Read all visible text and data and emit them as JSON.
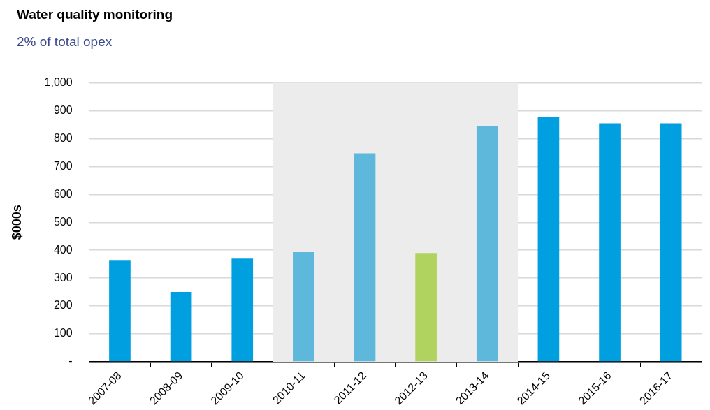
{
  "chart_data": {
    "type": "bar",
    "title": "Water quality monitoring",
    "subtitle": "2% of total opex",
    "ylabel": "$000s",
    "categories": [
      "2007-08",
      "2008-09",
      "2009-10",
      "2010-11",
      "2011-12",
      "2012-13",
      "2013-14",
      "2014-15",
      "2015-16",
      "2016-17"
    ],
    "values": [
      365,
      250,
      370,
      393,
      747,
      390,
      844,
      877,
      855,
      855
    ],
    "colors": [
      "#009fdf",
      "#009fdf",
      "#009fdf",
      "#5eb8db",
      "#5eb8db",
      "#b0d35f",
      "#5eb8db",
      "#009fdf",
      "#009fdf",
      "#009fdf"
    ],
    "ylim": [
      0,
      1000
    ],
    "yticks": [
      {
        "value": 0,
        "label": "-"
      },
      100,
      200,
      300,
      400,
      500,
      600,
      700,
      800,
      900,
      {
        "value": 1000,
        "label": "1,000"
      }
    ],
    "grid": "y",
    "bands": [
      {
        "axis": "x",
        "from": "2010-11",
        "to": "2013-14",
        "color": "#ececec"
      }
    ]
  }
}
